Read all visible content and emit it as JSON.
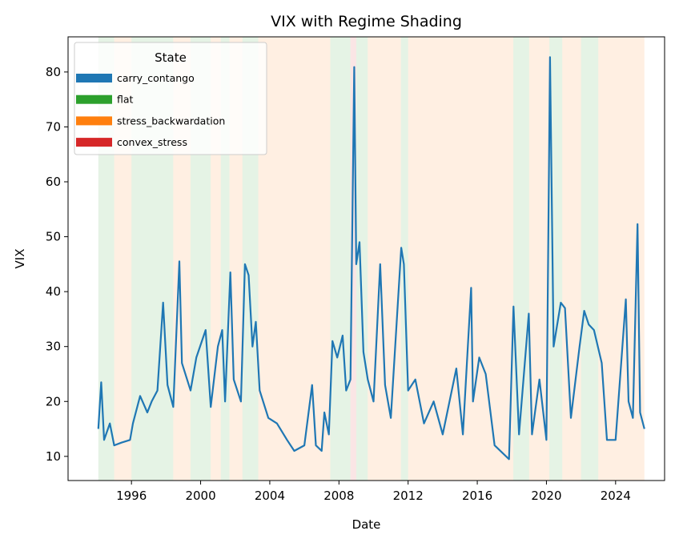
{
  "chart_data": {
    "type": "line",
    "title": "VIX with Regime Shading",
    "xlabel": "Date",
    "ylabel": "VIX",
    "xlim": [
      "1992-05-01",
      "2026-11-01"
    ],
    "ylim": [
      5.6,
      86.4
    ],
    "x_ticks": [
      "1996",
      "2000",
      "2004",
      "2008",
      "2012",
      "2016",
      "2020",
      "2024"
    ],
    "y_ticks": [
      10,
      20,
      30,
      40,
      50,
      60,
      70,
      80
    ],
    "grid": false,
    "legend": {
      "title": "State",
      "placement": "top-left",
      "entries": [
        {
          "label": "carry_contango",
          "color": "#1f77b4"
        },
        {
          "label": "flat",
          "color": "#2ca02c"
        },
        {
          "label": "stress_backwardation",
          "color": "#ff7f0e"
        },
        {
          "label": "convex_stress",
          "color": "#d62728"
        }
      ]
    },
    "regimes": [
      {
        "start": "1994-02-01",
        "end": "1995-01-01",
        "state": "flat"
      },
      {
        "start": "1995-01-01",
        "end": "1996-01-01",
        "state": "stress_backwardation"
      },
      {
        "start": "1996-01-01",
        "end": "1998-06-01",
        "state": "flat"
      },
      {
        "start": "1998-06-01",
        "end": "1999-06-01",
        "state": "stress_backwardation"
      },
      {
        "start": "1999-06-01",
        "end": "2000-08-01",
        "state": "flat"
      },
      {
        "start": "2000-08-01",
        "end": "2001-03-01",
        "state": "stress_backwardation"
      },
      {
        "start": "2001-03-01",
        "end": "2001-09-01",
        "state": "flat"
      },
      {
        "start": "2001-09-01",
        "end": "2002-06-01",
        "state": "stress_backwardation"
      },
      {
        "start": "2002-06-01",
        "end": "2003-05-01",
        "state": "flat"
      },
      {
        "start": "2003-05-01",
        "end": "2007-07-01",
        "state": "stress_backwardation"
      },
      {
        "start": "2007-07-01",
        "end": "2008-09-01",
        "state": "flat"
      },
      {
        "start": "2008-09-01",
        "end": "2009-01-01",
        "state": "convex_stress"
      },
      {
        "start": "2009-01-01",
        "end": "2009-09-01",
        "state": "flat"
      },
      {
        "start": "2009-09-01",
        "end": "2011-08-01",
        "state": "stress_backwardation"
      },
      {
        "start": "2011-08-01",
        "end": "2012-01-01",
        "state": "flat"
      },
      {
        "start": "2012-01-01",
        "end": "2018-02-01",
        "state": "stress_backwardation"
      },
      {
        "start": "2018-02-01",
        "end": "2019-01-01",
        "state": "flat"
      },
      {
        "start": "2019-01-01",
        "end": "2020-03-01",
        "state": "stress_backwardation"
      },
      {
        "start": "2020-03-01",
        "end": "2020-12-01",
        "state": "flat"
      },
      {
        "start": "2020-12-01",
        "end": "2022-01-01",
        "state": "stress_backwardation"
      },
      {
        "start": "2022-01-01",
        "end": "2023-01-01",
        "state": "flat"
      },
      {
        "start": "2023-01-01",
        "end": "2025-09-01",
        "state": "stress_backwardation"
      }
    ],
    "series": [
      {
        "color": "#1f77b4",
        "points": [
          [
            "1994-02-01",
            15
          ],
          [
            "1994-04-01",
            23.5
          ],
          [
            "1994-06-01",
            13
          ],
          [
            "1994-10-01",
            16
          ],
          [
            "1995-01-01",
            12
          ],
          [
            "1995-06-01",
            12.5
          ],
          [
            "1995-12-01",
            13
          ],
          [
            "1996-02-01",
            16
          ],
          [
            "1996-07-01",
            21
          ],
          [
            "1996-12-01",
            18
          ],
          [
            "1997-03-01",
            20
          ],
          [
            "1997-07-01",
            22
          ],
          [
            "1997-10-30",
            38
          ],
          [
            "1998-02-01",
            23
          ],
          [
            "1998-06-01",
            19
          ],
          [
            "1998-10-08",
            45.5
          ],
          [
            "1998-12-01",
            27
          ],
          [
            "1999-06-01",
            22
          ],
          [
            "1999-10-01",
            28
          ],
          [
            "2000-04-15",
            33
          ],
          [
            "2000-08-01",
            19
          ],
          [
            "2001-01-01",
            30
          ],
          [
            "2001-04-01",
            33
          ],
          [
            "2001-06-01",
            20
          ],
          [
            "2001-09-20",
            43.5
          ],
          [
            "2001-12-01",
            24
          ],
          [
            "2002-05-01",
            20
          ],
          [
            "2002-07-24",
            45
          ],
          [
            "2002-10-10",
            43
          ],
          [
            "2003-01-01",
            30
          ],
          [
            "2003-03-11",
            34.5
          ],
          [
            "2003-06-01",
            22
          ],
          [
            "2003-12-01",
            17
          ],
          [
            "2004-06-01",
            16
          ],
          [
            "2005-01-01",
            13
          ],
          [
            "2005-06-01",
            11
          ],
          [
            "2006-01-01",
            12
          ],
          [
            "2006-06-13",
            23
          ],
          [
            "2006-09-01",
            12
          ],
          [
            "2007-01-01",
            11
          ],
          [
            "2007-02-27",
            18
          ],
          [
            "2007-06-01",
            14
          ],
          [
            "2007-08-16",
            31
          ],
          [
            "2007-11-26",
            28
          ],
          [
            "2008-03-17",
            32
          ],
          [
            "2008-06-01",
            22
          ],
          [
            "2008-09-01",
            24
          ],
          [
            "2008-11-20",
            80.9
          ],
          [
            "2009-01-01",
            45
          ],
          [
            "2009-03-09",
            49
          ],
          [
            "2009-06-01",
            29
          ],
          [
            "2009-09-01",
            24
          ],
          [
            "2010-01-01",
            20
          ],
          [
            "2010-05-20",
            45
          ],
          [
            "2010-09-01",
            23
          ],
          [
            "2011-01-01",
            17
          ],
          [
            "2011-08-08",
            48
          ],
          [
            "2011-10-03",
            45
          ],
          [
            "2012-01-01",
            22
          ],
          [
            "2012-06-01",
            24
          ],
          [
            "2012-12-01",
            16
          ],
          [
            "2013-06-24",
            20
          ],
          [
            "2014-01-01",
            14
          ],
          [
            "2014-10-15",
            26
          ],
          [
            "2015-03-01",
            14
          ],
          [
            "2015-08-24",
            40.7
          ],
          [
            "2015-10-01",
            20
          ],
          [
            "2016-02-11",
            28
          ],
          [
            "2016-06-27",
            25
          ],
          [
            "2017-01-01",
            12
          ],
          [
            "2017-11-01",
            9.5
          ],
          [
            "2018-02-05",
            37.3
          ],
          [
            "2018-06-01",
            14
          ],
          [
            "2018-12-24",
            36
          ],
          [
            "2019-03-01",
            14
          ],
          [
            "2019-08-05",
            24
          ],
          [
            "2020-01-01",
            13
          ],
          [
            "2020-03-16",
            82.7
          ],
          [
            "2020-06-01",
            30
          ],
          [
            "2020-10-30",
            38
          ],
          [
            "2021-01-27",
            37
          ],
          [
            "2021-06-01",
            17
          ],
          [
            "2021-12-01",
            30
          ],
          [
            "2022-03-07",
            36.5
          ],
          [
            "2022-06-13",
            34
          ],
          [
            "2022-10-01",
            33
          ],
          [
            "2023-03-13",
            27
          ],
          [
            "2023-07-01",
            13
          ],
          [
            "2024-01-01",
            13
          ],
          [
            "2024-08-05",
            38.6
          ],
          [
            "2024-10-01",
            20
          ],
          [
            "2025-01-01",
            17
          ],
          [
            "2025-04-08",
            52.3
          ],
          [
            "2025-06-01",
            18
          ],
          [
            "2025-09-01",
            15
          ]
        ]
      }
    ]
  }
}
